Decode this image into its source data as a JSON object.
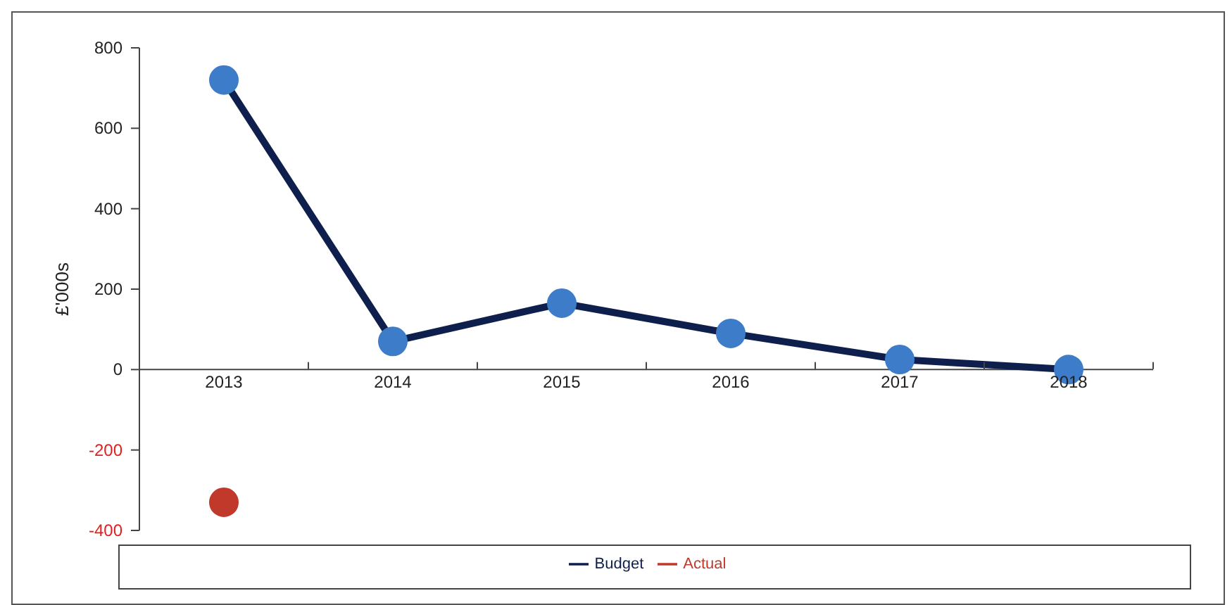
{
  "chart_data": {
    "type": "line",
    "ylabel": "£'000s",
    "categories": [
      "2013",
      "2014",
      "2015",
      "2016",
      "2017",
      "2018"
    ],
    "series": [
      {
        "name": "Budget",
        "color": "#0e1f4d",
        "values": [
          720,
          70,
          165,
          90,
          25,
          0
        ]
      },
      {
        "name": "Actual",
        "color": "#c0392b",
        "values": [
          -330,
          null,
          null,
          null,
          null,
          null
        ]
      }
    ],
    "ylim": [
      -400,
      800
    ],
    "yticks": [
      -400,
      -200,
      0,
      200,
      400,
      600,
      800
    ],
    "grid": false,
    "legend": "bottom",
    "marker": "circle",
    "line_style": "solid"
  }
}
